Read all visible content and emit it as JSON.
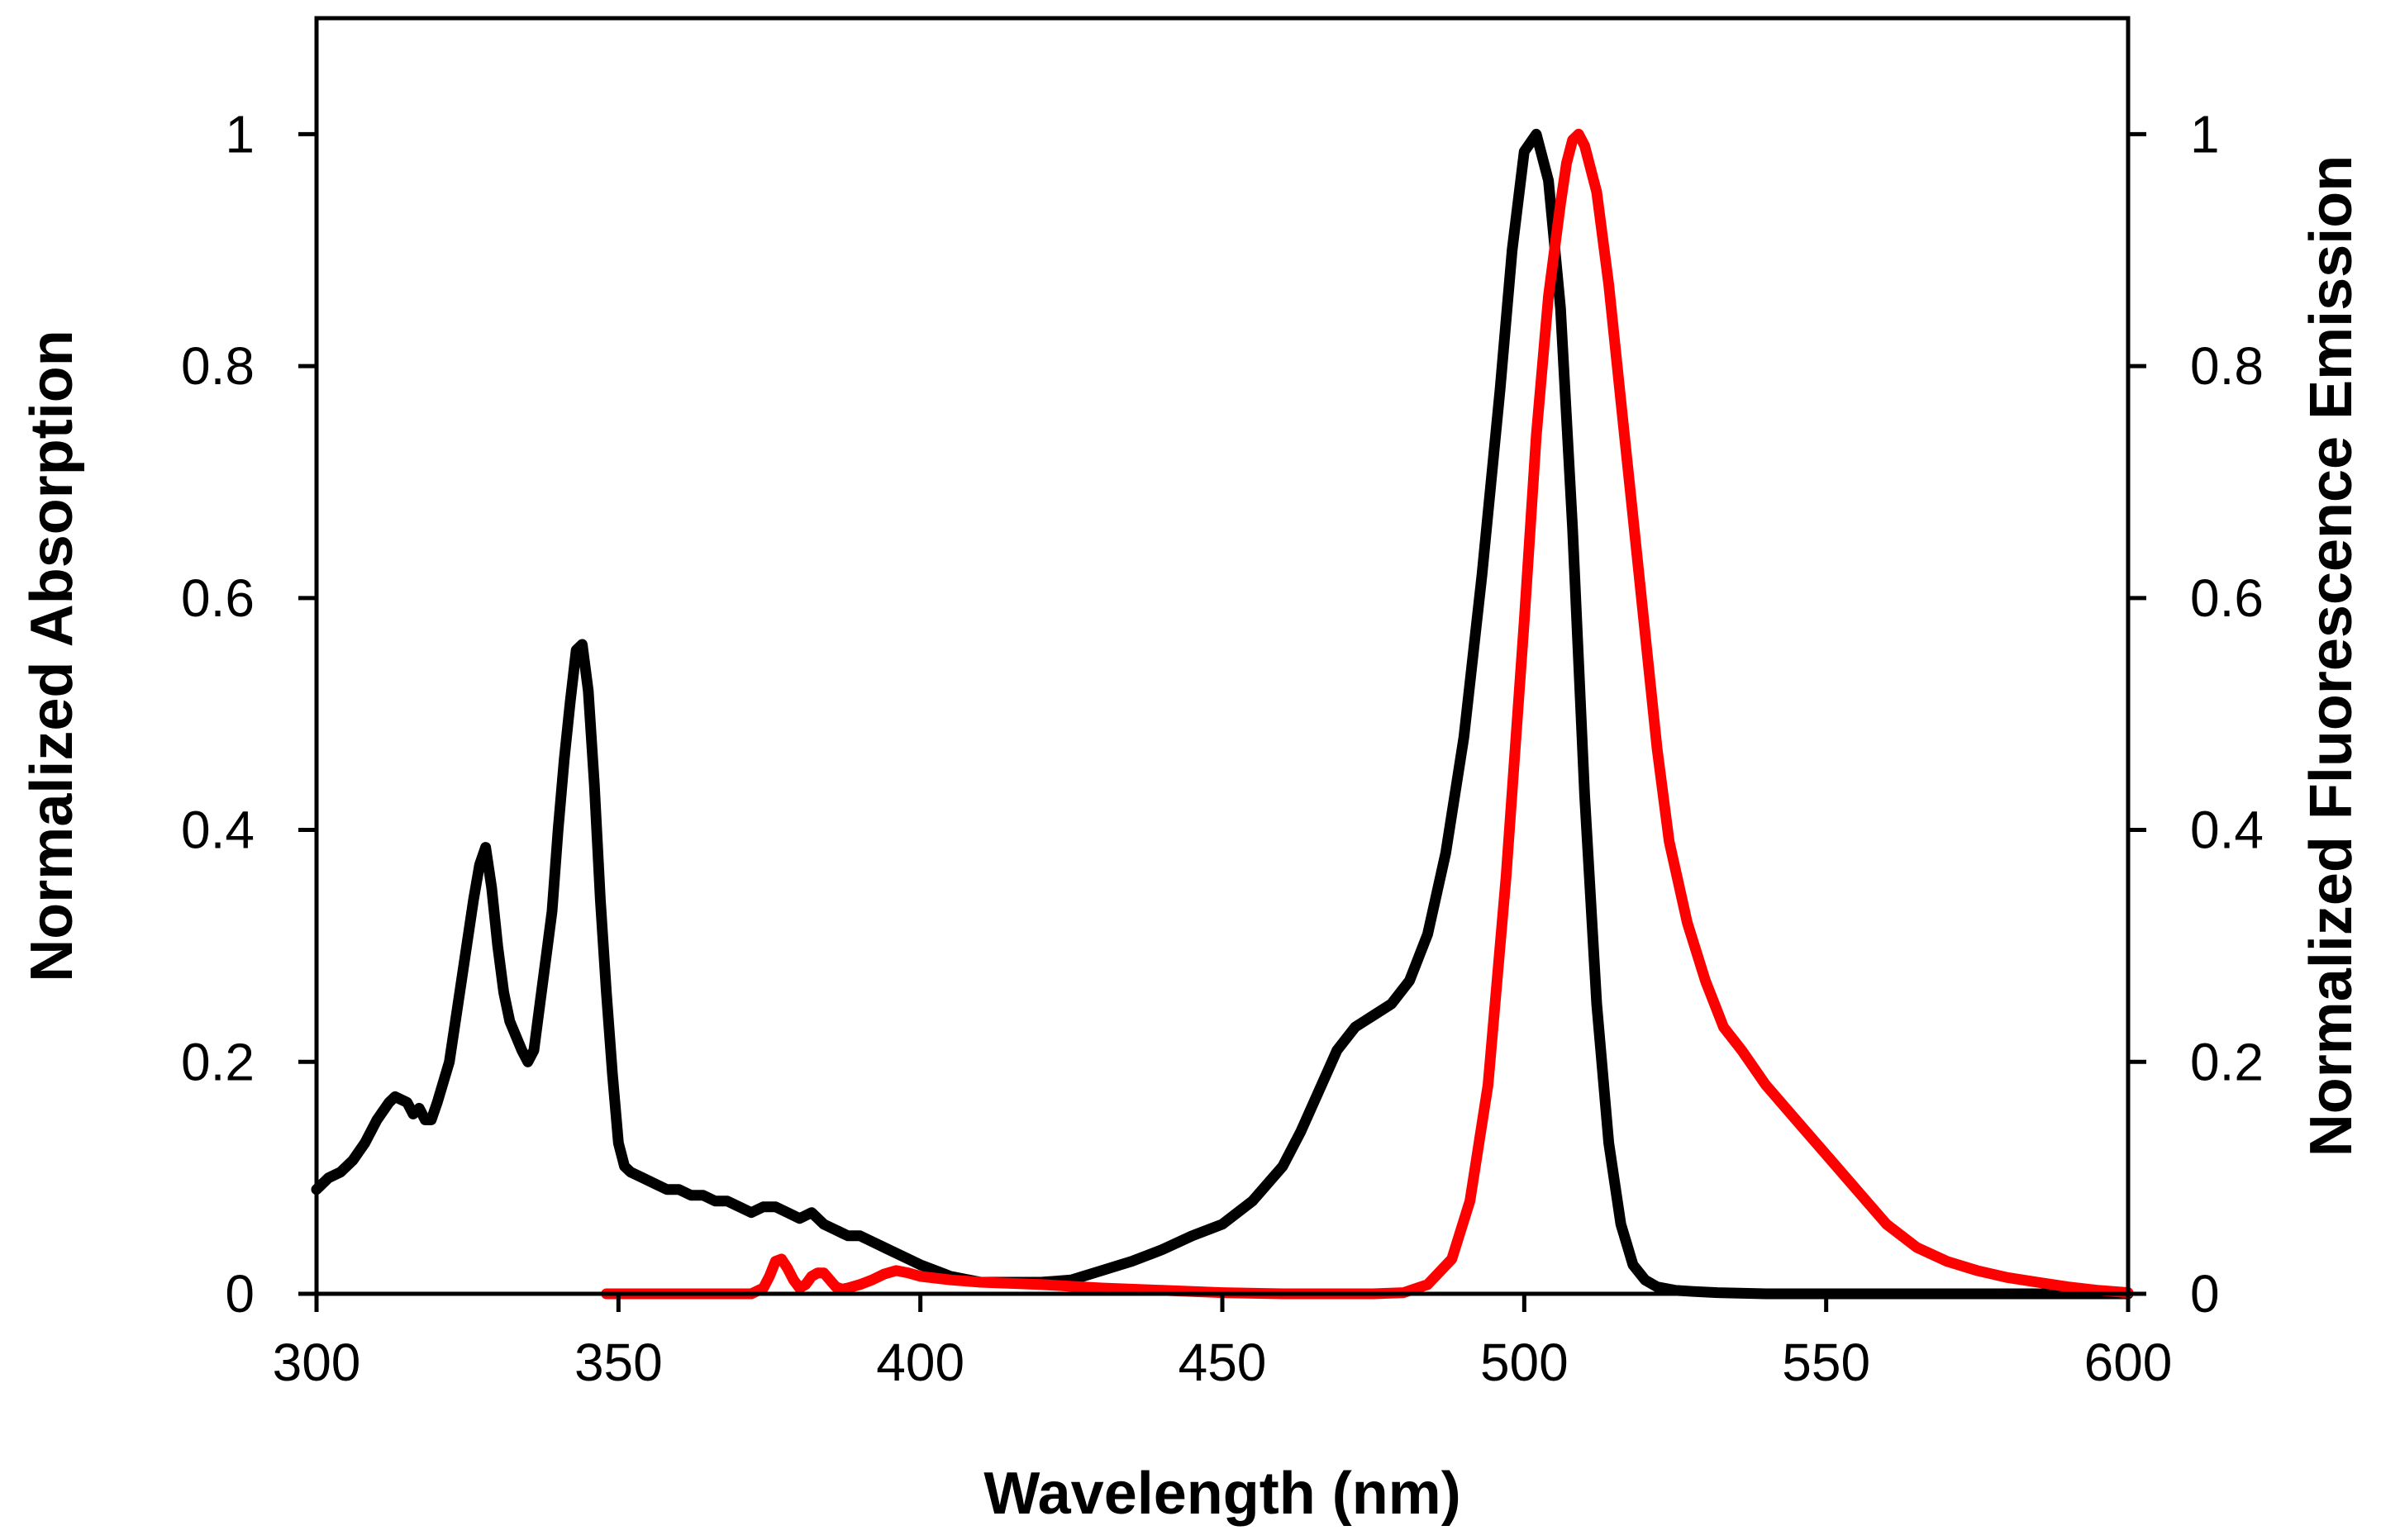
{
  "chart_data": {
    "type": "line",
    "title": "",
    "xlabel": "Wavelength (nm)",
    "ylabel": "Normalized Absorption",
    "y2label": "Normalized Fluorescence Emission",
    "xlim": [
      300,
      600
    ],
    "ylim": [
      0,
      1.1
    ],
    "y2lim": [
      0,
      1.1
    ],
    "grid": false,
    "legend": "none",
    "xticks": [
      300,
      350,
      400,
      450,
      500,
      550,
      600
    ],
    "yticks": [
      0,
      0.2,
      0.4,
      0.6,
      0.8,
      1
    ],
    "y2ticks": [
      0,
      0.2,
      0.4,
      0.6,
      0.8,
      1
    ],
    "xtick_labels": [
      "300",
      "350",
      "400",
      "450",
      "500",
      "550",
      "600"
    ],
    "ytick_labels": [
      "0",
      "0.2",
      "0.4",
      "0.6",
      "0.8",
      "1"
    ],
    "y2tick_labels": [
      "0",
      "0.2",
      "0.4",
      "0.6",
      "0.8",
      "1"
    ],
    "series": [
      {
        "name": "Absorption",
        "axis": "left",
        "color": "#000000",
        "x": [
          300,
          302,
          304,
          306,
          308,
          310,
          312,
          313,
          315,
          316,
          317,
          318,
          319,
          320,
          322,
          324,
          326,
          327,
          328,
          329,
          330,
          331,
          332,
          334,
          335,
          336,
          337,
          338,
          339,
          340,
          341,
          342,
          343,
          344,
          345,
          346,
          347,
          348,
          349,
          350,
          351,
          352,
          354,
          356,
          358,
          360,
          362,
          364,
          366,
          368,
          370,
          372,
          374,
          376,
          378,
          380,
          382,
          384,
          386,
          388,
          390,
          392,
          394,
          396,
          398,
          400,
          405,
          410,
          415,
          420,
          425,
          430,
          435,
          440,
          445,
          450,
          455,
          460,
          463,
          466,
          469,
          472,
          475,
          478,
          481,
          484,
          487,
          490,
          493,
          496,
          498,
          500,
          502,
          504,
          506,
          508,
          510,
          512,
          514,
          516,
          518,
          520,
          522,
          525,
          528,
          532,
          540,
          550,
          560,
          570,
          580,
          590,
          600
        ],
        "values": [
          0.09,
          0.1,
          0.105,
          0.115,
          0.13,
          0.15,
          0.165,
          0.17,
          0.165,
          0.155,
          0.16,
          0.15,
          0.15,
          0.165,
          0.2,
          0.27,
          0.34,
          0.37,
          0.385,
          0.35,
          0.3,
          0.26,
          0.235,
          0.21,
          0.2,
          0.21,
          0.25,
          0.29,
          0.33,
          0.4,
          0.46,
          0.51,
          0.555,
          0.56,
          0.52,
          0.44,
          0.34,
          0.26,
          0.19,
          0.13,
          0.11,
          0.105,
          0.1,
          0.095,
          0.09,
          0.09,
          0.085,
          0.085,
          0.08,
          0.08,
          0.075,
          0.07,
          0.075,
          0.075,
          0.07,
          0.065,
          0.07,
          0.06,
          0.055,
          0.05,
          0.05,
          0.045,
          0.04,
          0.035,
          0.03,
          0.025,
          0.015,
          0.01,
          0.01,
          0.01,
          0.012,
          0.02,
          0.028,
          0.038,
          0.05,
          0.06,
          0.08,
          0.11,
          0.14,
          0.175,
          0.21,
          0.23,
          0.24,
          0.25,
          0.27,
          0.31,
          0.38,
          0.48,
          0.62,
          0.78,
          0.9,
          0.985,
          1.0,
          0.96,
          0.85,
          0.66,
          0.43,
          0.25,
          0.13,
          0.06,
          0.025,
          0.012,
          0.006,
          0.003,
          0.002,
          0.001,
          0.0,
          0.0,
          0.0,
          0.0,
          0.0,
          0.0,
          0.0
        ]
      },
      {
        "name": "Fluorescence Emission",
        "axis": "right",
        "color": "#ff0000",
        "x": [
          348,
          360,
          372,
          374,
          375,
          376,
          377,
          378,
          379,
          380,
          381,
          382,
          383,
          384,
          385,
          386,
          387,
          388,
          390,
          392,
          394,
          396,
          398,
          400,
          405,
          410,
          420,
          430,
          440,
          450,
          460,
          470,
          475,
          480,
          484,
          488,
          491,
          494,
          497,
          500,
          502,
          504,
          506,
          507,
          508,
          509,
          510,
          512,
          514,
          516,
          518,
          520,
          522,
          524,
          527,
          530,
          533,
          536,
          540,
          545,
          550,
          555,
          560,
          565,
          570,
          575,
          580,
          585,
          590,
          595,
          600
        ],
        "values": [
          0.0,
          0.0,
          0.0,
          0.005,
          0.015,
          0.028,
          0.03,
          0.022,
          0.012,
          0.005,
          0.008,
          0.015,
          0.018,
          0.018,
          0.012,
          0.006,
          0.004,
          0.005,
          0.008,
          0.012,
          0.017,
          0.02,
          0.018,
          0.015,
          0.012,
          0.01,
          0.008,
          0.005,
          0.003,
          0.001,
          0.0,
          0.0,
          0.0,
          0.001,
          0.008,
          0.03,
          0.08,
          0.18,
          0.36,
          0.58,
          0.74,
          0.86,
          0.94,
          0.975,
          0.995,
          1.0,
          0.99,
          0.95,
          0.87,
          0.77,
          0.67,
          0.57,
          0.47,
          0.39,
          0.32,
          0.27,
          0.23,
          0.21,
          0.18,
          0.15,
          0.12,
          0.09,
          0.06,
          0.04,
          0.028,
          0.02,
          0.014,
          0.01,
          0.006,
          0.003,
          0.001
        ]
      }
    ]
  }
}
